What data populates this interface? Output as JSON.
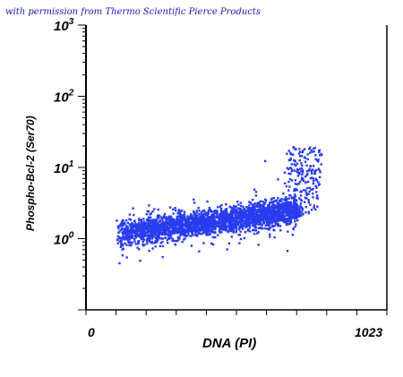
{
  "credit": "with permission from Thermo Scientific Pierce Products",
  "chart_data": {
    "type": "scatter",
    "xlabel": "DNA (PI)",
    "ylabel": "Phospho-Bcl-2 (Ser70)",
    "x_tick_labels": [
      "0",
      "1023"
    ],
    "xlim": [
      0,
      1023
    ],
    "y_scale": "log",
    "ylim": [
      0.1,
      1000
    ],
    "y_tick_labels": [
      {
        "value": 1,
        "base": "10",
        "exp": "0"
      },
      {
        "value": 10,
        "base": "10",
        "exp": "1"
      },
      {
        "value": 100,
        "base": "10",
        "exp": "2"
      },
      {
        "value": 1000,
        "base": "10",
        "exp": "3"
      }
    ],
    "point_color": "#2a3cf0",
    "grid": false,
    "populations": [
      {
        "x_range": [
          110,
          720
        ],
        "y_range": [
          0.6,
          4
        ],
        "description": "main elongated population rising with DNA content"
      },
      {
        "x_range": [
          650,
          800
        ],
        "y_range": [
          2,
          20
        ],
        "description": "tail extending upward at high DNA content"
      }
    ]
  }
}
